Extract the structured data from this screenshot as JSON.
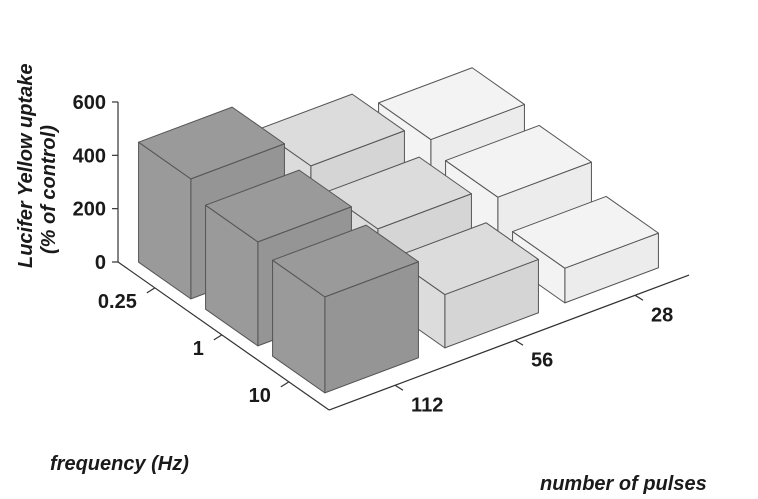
{
  "chart_data": {
    "type": "bar3d",
    "title": "",
    "zlabel_line1": "Lucifer Yellow uptake",
    "zlabel_line2": "(% of control)",
    "xlabel": "frequency (Hz)",
    "ylabel": "number of pulses",
    "z_ticks": [
      "600",
      "400",
      "200",
      "0"
    ],
    "zlim": [
      0,
      600
    ],
    "frequency_categories": [
      "0.25",
      "1",
      "10"
    ],
    "pulse_categories": [
      "112",
      "56",
      "28"
    ],
    "series": [
      {
        "name": "112",
        "color": "#9a9a9a",
        "values": [
          450,
          390,
          360
        ]
      },
      {
        "name": "56",
        "color": "#dcdcdc",
        "values": [
          330,
          270,
          200
        ]
      },
      {
        "name": "28",
        "color": "#f3f3f3",
        "values": [
          260,
          220,
          130
        ]
      }
    ]
  }
}
